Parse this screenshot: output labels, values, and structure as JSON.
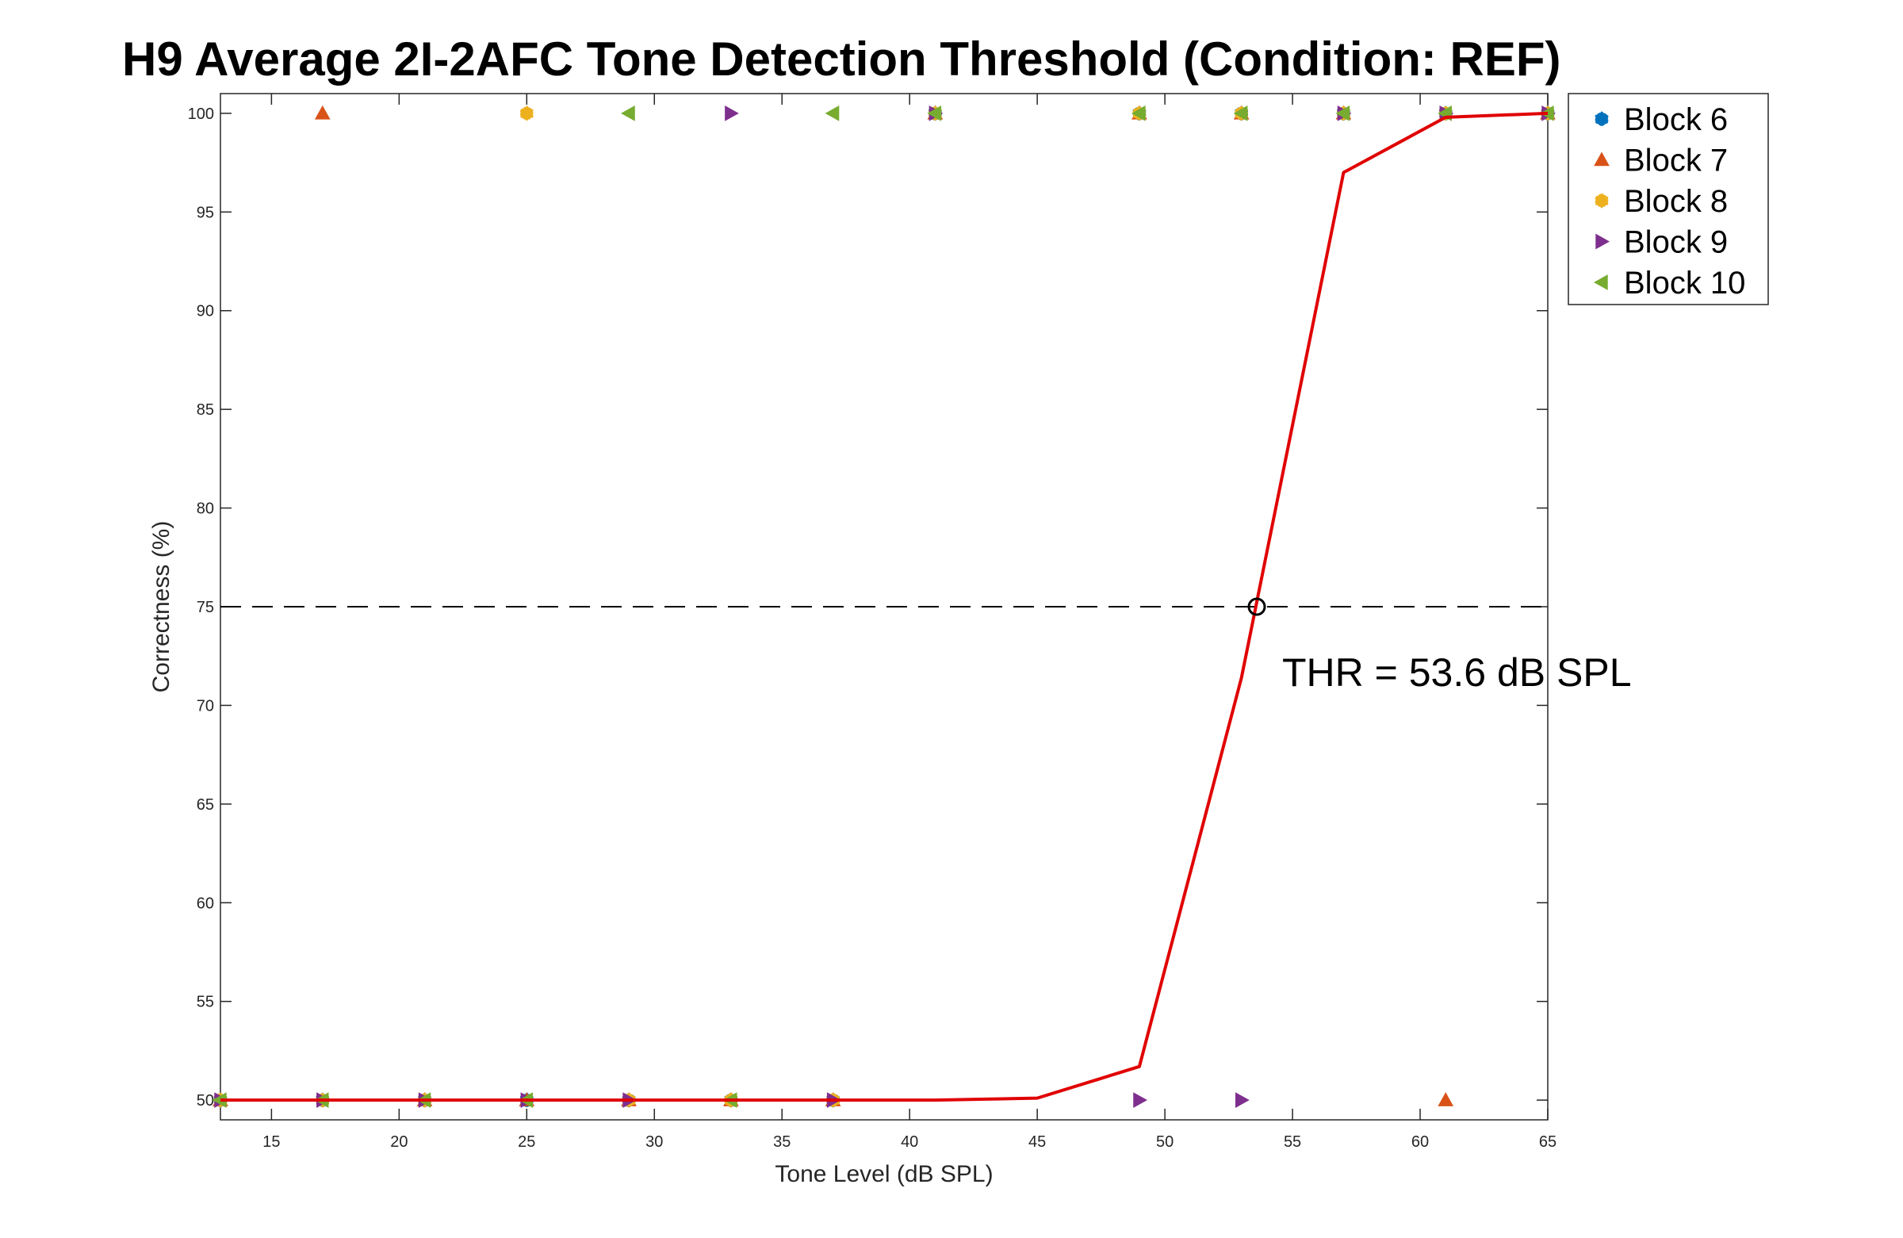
{
  "colors": {
    "block_6": "#0072BD",
    "block_7": "#D95319",
    "block_8": "#EDB120",
    "block_9": "#7E2F8E",
    "block_10": "#77AC30",
    "fit_line": "#E00000",
    "threshold_line": "#000000"
  },
  "chart_data": {
    "type": "scatter",
    "title": "H9 Average 2I-2AFC Tone Detection Threshold (Condition: REF)",
    "xlabel": "Tone Level (dB SPL)",
    "ylabel": "Correctness (%)",
    "xlim": [
      13,
      65
    ],
    "ylim": [
      49,
      101
    ],
    "xticks": [
      15,
      20,
      25,
      30,
      35,
      40,
      45,
      50,
      55,
      60,
      65
    ],
    "yticks": [
      50,
      55,
      60,
      65,
      70,
      75,
      80,
      85,
      90,
      95,
      100
    ],
    "grid": false,
    "legend_position": "top-right",
    "series": [
      {
        "name": "Block 6",
        "color_key": "block_6",
        "points": [
          [
            13,
            50
          ],
          [
            17,
            50
          ],
          [
            21,
            50
          ],
          [
            25,
            50
          ],
          [
            29,
            50
          ],
          [
            33,
            50
          ],
          [
            37,
            50
          ],
          [
            41,
            100
          ],
          [
            49,
            100
          ],
          [
            53,
            100
          ],
          [
            57,
            100
          ],
          [
            61,
            100
          ],
          [
            65,
            100
          ]
        ]
      },
      {
        "name": "Block 7",
        "color_key": "block_7",
        "points": [
          [
            13,
            50
          ],
          [
            17,
            100
          ],
          [
            21,
            50
          ],
          [
            25,
            50
          ],
          [
            29,
            50
          ],
          [
            33,
            50
          ],
          [
            37,
            50
          ],
          [
            41,
            100
          ],
          [
            49,
            100
          ],
          [
            53,
            100
          ],
          [
            57,
            100
          ],
          [
            61,
            50
          ],
          [
            65,
            100
          ]
        ]
      },
      {
        "name": "Block 8",
        "color_key": "block_8",
        "points": [
          [
            13,
            50
          ],
          [
            17,
            50
          ],
          [
            21,
            50
          ],
          [
            25,
            100
          ],
          [
            29,
            50
          ],
          [
            33,
            50
          ],
          [
            37,
            50
          ],
          [
            41,
            100
          ],
          [
            49,
            100
          ],
          [
            53,
            100
          ],
          [
            57,
            100
          ],
          [
            61,
            100
          ],
          [
            65,
            100
          ]
        ]
      },
      {
        "name": "Block 9",
        "color_key": "block_9",
        "points": [
          [
            13,
            50
          ],
          [
            17,
            50
          ],
          [
            21,
            50
          ],
          [
            25,
            50
          ],
          [
            29,
            50
          ],
          [
            33,
            100
          ],
          [
            37,
            50
          ],
          [
            41,
            100
          ],
          [
            49,
            50
          ],
          [
            53,
            50
          ],
          [
            57,
            100
          ],
          [
            61,
            100
          ],
          [
            65,
            100
          ]
        ]
      },
      {
        "name": "Block 10",
        "color_key": "block_10",
        "points": [
          [
            13,
            50
          ],
          [
            17,
            50
          ],
          [
            21,
            50
          ],
          [
            25,
            50
          ],
          [
            29,
            100
          ],
          [
            33,
            50
          ],
          [
            37,
            100
          ],
          [
            41,
            100
          ],
          [
            49,
            100
          ],
          [
            53,
            100
          ],
          [
            57,
            100
          ],
          [
            61,
            100
          ],
          [
            65,
            100
          ]
        ]
      }
    ],
    "fit_curve": {
      "x": [
        13,
        17,
        21,
        25,
        29,
        33,
        37,
        41,
        45,
        49,
        53,
        57,
        61,
        65
      ],
      "y": [
        50,
        50,
        50,
        50,
        50,
        50,
        50,
        50,
        50.1,
        51.7,
        71.4,
        97,
        99.8,
        100
      ]
    },
    "threshold": {
      "level": 75,
      "x": 53.6,
      "label": "THR = 53.6 dB SPL"
    }
  }
}
